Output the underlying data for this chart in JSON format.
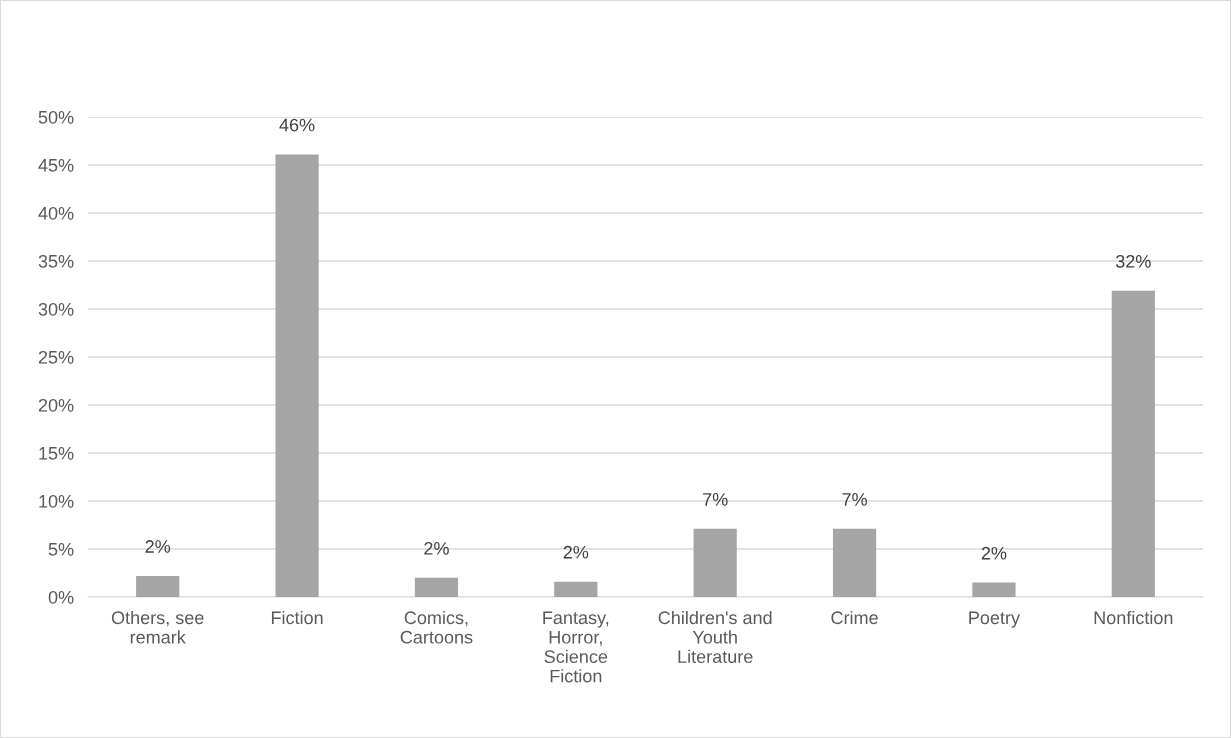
{
  "chart_data": {
    "type": "bar",
    "categories": [
      "Others, see\nremark",
      "Fiction",
      "Comics,\nCartoons",
      "Fantasy,\nHorror,\nScience\nFiction",
      "Children's and\nYouth\nLiterature",
      "Crime",
      "Poetry",
      "Nonfiction"
    ],
    "values": [
      2.2,
      46.1,
      2.0,
      1.6,
      7.1,
      7.1,
      1.5,
      31.9
    ],
    "value_labels": [
      "2%",
      "46%",
      "2%",
      "2%",
      "7%",
      "7%",
      "2%",
      "32%"
    ],
    "color": "#a5a5a5",
    "ylim": [
      0,
      50
    ],
    "yticks": [
      {
        "value": 0,
        "label": "0%"
      },
      {
        "value": 5,
        "label": "5%"
      },
      {
        "value": 10,
        "label": "10%"
      },
      {
        "value": 15,
        "label": "15%"
      },
      {
        "value": 20,
        "label": "20%"
      },
      {
        "value": 25,
        "label": "25%"
      },
      {
        "value": 30,
        "label": "30%"
      },
      {
        "value": 35,
        "label": "35%"
      },
      {
        "value": 40,
        "label": "40%"
      },
      {
        "value": 45,
        "label": "45%"
      },
      {
        "value": 50,
        "label": "50%"
      }
    ],
    "grid": "y",
    "legend": false
  }
}
